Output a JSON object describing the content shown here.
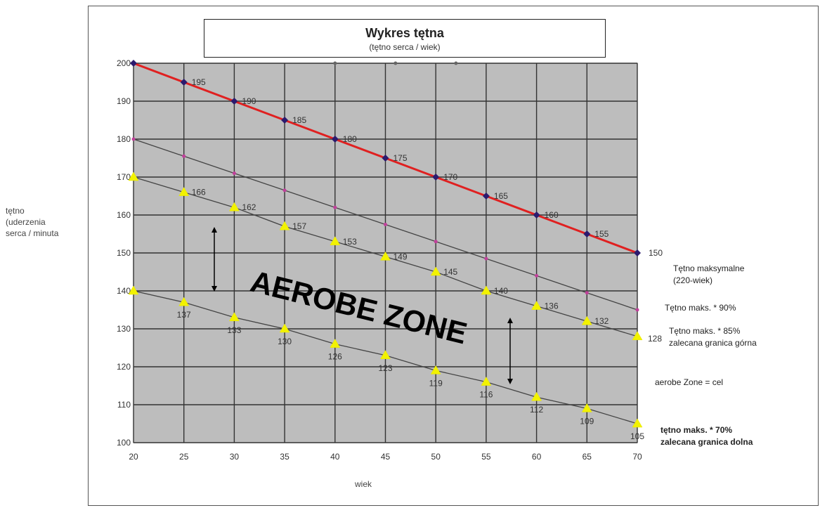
{
  "title": "Wykres tętna",
  "subtitle": "(tętno serca / wiek)",
  "ylabel_lines": [
    "tętno",
    "(uderzenia",
    "serca / minuta"
  ],
  "xlabel": "wiek",
  "zone_label": "AEROBE ZONE",
  "colors": {
    "plot_bg": "#bdbdbd",
    "grid": "#333333",
    "max_line": "#e02020",
    "max_marker": "#2b1a6e",
    "p90_line": "#444444",
    "p90_marker": "#c0409a",
    "yellow_marker": "#f2f200"
  },
  "side_labels": {
    "max": [
      "Tętno maksymalne",
      "(220-wiek)"
    ],
    "p90": [
      "Tętno maks. * 90%"
    ],
    "p85": [
      "Tętno maks. * 85%",
      "zalecana granica górna"
    ],
    "zone": [
      "aerobe Zone = cel"
    ],
    "p70": [
      "tętno maks. * 70%",
      "zalecana granica dolna"
    ]
  },
  "chart_data": {
    "type": "line",
    "title": "Wykres tętna",
    "subtitle": "(tętno serca / wiek)",
    "xlabel": "wiek",
    "ylabel": "tętno (uderzenia serca / minuta",
    "xlim": [
      20,
      70
    ],
    "ylim": [
      100,
      200
    ],
    "xticks": [
      20,
      25,
      30,
      35,
      40,
      45,
      50,
      55,
      60,
      65,
      70
    ],
    "yticks": [
      100,
      110,
      120,
      130,
      140,
      150,
      160,
      170,
      180,
      190,
      200
    ],
    "grid": true,
    "x": [
      20,
      25,
      30,
      35,
      40,
      45,
      50,
      55,
      60,
      65,
      70
    ],
    "series": [
      {
        "name": "Tętno maksymalne (220-wiek)",
        "values": [
          200,
          195,
          190,
          185,
          180,
          175,
          170,
          165,
          160,
          155,
          150
        ],
        "labels": [
          "",
          "195",
          "190",
          "185",
          "180",
          "175",
          "170",
          "165",
          "160",
          "155",
          "150"
        ]
      },
      {
        "name": "Tętno maks. * 90%",
        "values": [
          180,
          175.5,
          171,
          166.5,
          162,
          157.5,
          153,
          148.5,
          144,
          139.5,
          135
        ],
        "labels": [
          "",
          "",
          "",
          "",
          "",
          "",
          "",
          "",
          "",
          "",
          ""
        ]
      },
      {
        "name": "Tętno maks. * 85% zalecana granica górna",
        "values": [
          170,
          166,
          162,
          157,
          153,
          149,
          145,
          140,
          136,
          132,
          128
        ],
        "labels": [
          "",
          "166",
          "162",
          "157",
          "153",
          "149",
          "145",
          "140",
          "136",
          "132",
          "128"
        ]
      },
      {
        "name": "tętno maks. * 70% zalecana granica dolna",
        "values": [
          140,
          137,
          133,
          130,
          126,
          123,
          119,
          116,
          112,
          109,
          105
        ],
        "labels": [
          "",
          "137",
          "133",
          "130",
          "126",
          "123",
          "119",
          "116",
          "112",
          "109",
          "105"
        ]
      }
    ],
    "extra_points": [
      {
        "x": 40,
        "y": 200
      },
      {
        "x": 46,
        "y": 200
      },
      {
        "x": 52,
        "y": 200
      }
    ]
  }
}
